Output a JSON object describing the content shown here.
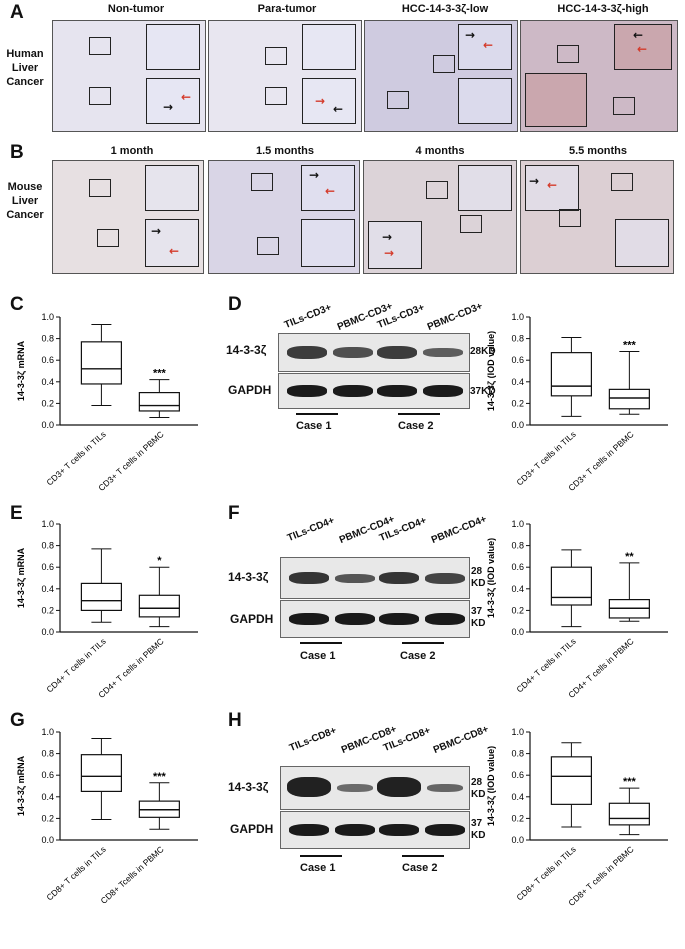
{
  "panels": {
    "A": "A",
    "B": "B",
    "C": "C",
    "D": "D",
    "E": "E",
    "F": "F",
    "G": "G",
    "H": "H"
  },
  "human": {
    "row_label": [
      "Human",
      "Liver",
      "Cancer"
    ],
    "columns": [
      "Non-tumor",
      "Para-tumor",
      "HCC-14-3-3ζ-low",
      "HCC-14-3-3ζ-high"
    ]
  },
  "mouse": {
    "row_label": [
      "Mouse",
      "Liver",
      "Cancer"
    ],
    "columns": [
      "1 month",
      "1.5 months",
      "4 months",
      "5.5 months"
    ]
  },
  "western": {
    "D": {
      "lanes": [
        "TILs-CD3+",
        "PBMC-CD3+",
        "TILs-CD3+",
        "PBMC-CD3+"
      ],
      "top_label": "14-3-3ζ",
      "bottom_label": "GAPDH",
      "top_mw": "28KD",
      "bottom_mw": "37KD",
      "cases": [
        "Case 1",
        "Case 2"
      ],
      "band_intensity": [
        0.75,
        0.6,
        0.75,
        0.5
      ]
    },
    "F": {
      "lanes": [
        "TILs-CD4+",
        "PBMC-CD4+",
        "TILs-CD4+",
        "PBMC-CD4+"
      ],
      "top_label": "14-3-3ζ",
      "bottom_label": "GAPDH",
      "top_mw": [
        "28",
        "KD"
      ],
      "bottom_mw": [
        "37",
        "KD"
      ],
      "cases": [
        "Case 1",
        "Case 2"
      ],
      "band_intensity": [
        0.8,
        0.55,
        0.8,
        0.7
      ]
    },
    "H": {
      "lanes": [
        "TILs-CD8+",
        "PBMC-CD8+",
        "TILs-CD8+",
        "PBMC-CD8+"
      ],
      "top_label": "14-3-3ζ",
      "bottom_label": "GAPDH",
      "top_mw": [
        "28",
        "KD"
      ],
      "bottom_mw": [
        "37",
        "KD"
      ],
      "cases": [
        "Case 1",
        "Case 2"
      ],
      "band_intensity": [
        0.95,
        0.4,
        0.95,
        0.45
      ]
    }
  },
  "chart_data": [
    {
      "id": "C",
      "type": "boxplot",
      "ylabel": "14-3-3ζ mRNA",
      "ylim": [
        0,
        1.0
      ],
      "yticks": [
        "0.0",
        "0.2",
        "0.4",
        "0.6",
        "0.8",
        "1.0"
      ],
      "categories": [
        "CD3+ T cells in TILs",
        "CD3+ T cells in PBMC"
      ],
      "boxes": [
        {
          "min": 0.18,
          "q1": 0.38,
          "median": 0.52,
          "q3": 0.77,
          "max": 0.93
        },
        {
          "min": 0.07,
          "q1": 0.13,
          "median": 0.18,
          "q3": 0.3,
          "max": 0.42
        }
      ],
      "significance": "***"
    },
    {
      "id": "D",
      "type": "boxplot",
      "ylabel": "14-3-3ζ (IOD value)",
      "ylim": [
        0,
        1.0
      ],
      "yticks": [
        "0.0",
        "0.2",
        "0.4",
        "0.6",
        "0.8",
        "1.0"
      ],
      "categories": [
        "CD3+ T cells in TILs",
        "CD3+ T cells in PBMC"
      ],
      "boxes": [
        {
          "min": 0.08,
          "q1": 0.27,
          "median": 0.36,
          "q3": 0.67,
          "max": 0.81
        },
        {
          "min": 0.1,
          "q1": 0.15,
          "median": 0.25,
          "q3": 0.33,
          "max": 0.68
        }
      ],
      "significance": "***"
    },
    {
      "id": "E",
      "type": "boxplot",
      "ylabel": "14-3-3ζ mRNA",
      "ylim": [
        0,
        1.0
      ],
      "yticks": [
        "0.0",
        "0.2",
        "0.4",
        "0.6",
        "0.8",
        "1.0"
      ],
      "categories": [
        "CD4+ T cells in TILs",
        "CD4+ T cells in PBMC"
      ],
      "boxes": [
        {
          "min": 0.09,
          "q1": 0.2,
          "median": 0.29,
          "q3": 0.45,
          "max": 0.77
        },
        {
          "min": 0.05,
          "q1": 0.14,
          "median": 0.22,
          "q3": 0.34,
          "max": 0.6
        }
      ],
      "significance": "*"
    },
    {
      "id": "F",
      "type": "boxplot",
      "ylabel": "14-3-3ζ (IOD value)",
      "ylim": [
        0,
        1.0
      ],
      "yticks": [
        "0.0",
        "0.2",
        "0.4",
        "0.6",
        "0.8",
        "1.0"
      ],
      "categories": [
        "CD4+ T cells in TILs",
        "CD4+ T cells in PBMC"
      ],
      "boxes": [
        {
          "min": 0.05,
          "q1": 0.25,
          "median": 0.32,
          "q3": 0.6,
          "max": 0.76
        },
        {
          "min": 0.1,
          "q1": 0.13,
          "median": 0.22,
          "q3": 0.3,
          "max": 0.64
        }
      ],
      "significance": "**"
    },
    {
      "id": "G",
      "type": "boxplot",
      "ylabel": "14-3-3ζ mRNA",
      "ylim": [
        0,
        1.0
      ],
      "yticks": [
        "0.0",
        "0.2",
        "0.4",
        "0.6",
        "0.8",
        "1.0"
      ],
      "categories": [
        "CD8+ T cells in TILs",
        "CD8+ Tcells in PBMC"
      ],
      "boxes": [
        {
          "min": 0.19,
          "q1": 0.45,
          "median": 0.59,
          "q3": 0.79,
          "max": 0.94
        },
        {
          "min": 0.1,
          "q1": 0.21,
          "median": 0.28,
          "q3": 0.36,
          "max": 0.53
        }
      ],
      "significance": "***"
    },
    {
      "id": "H",
      "type": "boxplot",
      "ylabel": "14-3-3ζ (IOD value)",
      "ylim": [
        0,
        1.0
      ],
      "yticks": [
        "0.0",
        "0.2",
        "0.4",
        "0.6",
        "0.8",
        "1.0"
      ],
      "categories": [
        "CD8+ T cells in TILs",
        "CD8+ T cells in PBMC"
      ],
      "boxes": [
        {
          "min": 0.12,
          "q1": 0.33,
          "median": 0.59,
          "q3": 0.77,
          "max": 0.9
        },
        {
          "min": 0.05,
          "q1": 0.14,
          "median": 0.2,
          "q3": 0.34,
          "max": 0.48
        }
      ],
      "significance": "***"
    }
  ],
  "colors": {
    "hematoxylin": "#8d8fc2",
    "brown_stain": "#a8624a",
    "tissue_bg": "#e9e6ee"
  }
}
